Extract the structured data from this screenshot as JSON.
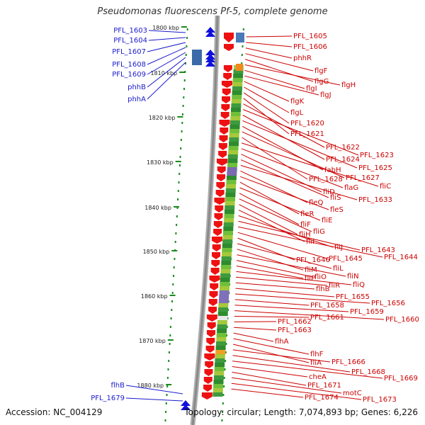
{
  "title": "Pseudomonas fluorescens Pf-5, complete genome",
  "footer": {
    "accession": "Accession: NC_004129",
    "topology": "Topology: circular; Length: 7,074,893 bp; Genes: 6,226"
  },
  "colors": {
    "left_label": "#1a1acc",
    "right_label": "#cc0000",
    "forward_gene": "#1010dd",
    "reverse_gene": "#ee1111",
    "tick": "#1a8a1a",
    "backbone": "#999999"
  },
  "scale_labels": [
    "1800 kbp",
    "1810 kbp",
    "1820 kbp",
    "1830 kbp",
    "1840 kbp",
    "1850 kbp",
    "1860 kbp",
    "1870 kbp",
    "1880 kbp"
  ],
  "left_labels": [
    "PFL_1603",
    "PFL_1604",
    "PFL_1607",
    "PFL_1608",
    "PFL_1609",
    "phhB",
    "phhA",
    "flhB",
    "PFL_1679"
  ],
  "right_labels": [
    "PFL_1605",
    "PFL_1606",
    "phhR",
    "flgF",
    "flgG",
    "flgH",
    "flgI",
    "flgJ",
    "flgK",
    "flgL",
    "PFL_1620",
    "PFL_1621",
    "PFL_1622",
    "PFL_1623",
    "PFL_1624",
    "PFL_1625",
    "fabH",
    "PFL_1627",
    "PFL_1628",
    "fliC",
    "flaG",
    "fliD",
    "fliS",
    "PFL_1633",
    "fleQ",
    "fleS",
    "fleR",
    "fliE",
    "fliF",
    "fliG",
    "fliH",
    "fliI",
    "fliJ",
    "PFL_1643",
    "PFL_1644",
    "PFL_1645",
    "PFL_1646",
    "fliL",
    "fliM",
    "fliN",
    "fliO",
    "fliP",
    "fliQ",
    "fliR",
    "flhB",
    "PFL_1655",
    "PFL_1656",
    "PFL_1658",
    "PFL_1659",
    "PFL_1660",
    "PFL_1661",
    "PFL_1662",
    "PFL_1663",
    "flhA",
    "flhF",
    "fliA",
    "PFL_1666",
    "PFL_1668",
    "PFL_1669",
    "cheA",
    "PFL_1671",
    "motC",
    "PFL_1673",
    "PFL_1674"
  ]
}
